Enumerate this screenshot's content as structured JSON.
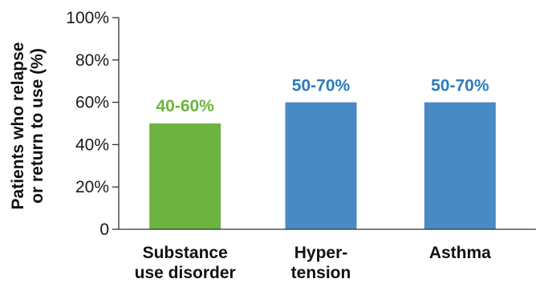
{
  "chart_data": {
    "type": "bar",
    "categories": [
      [
        "Substance",
        "use disorder"
      ],
      [
        "Hyper-",
        "tension"
      ],
      [
        "Asthma"
      ]
    ],
    "values": [
      50,
      60,
      60
    ],
    "data_labels": [
      "40-60%",
      "50-70%",
      "50-70%"
    ],
    "bar_colors": [
      "#6db33f",
      "#4a8ac4"
    ],
    "data_label_colors": [
      "#6db33f",
      "#2e7bbf"
    ],
    "ylabel_lines": [
      "Patients who relapse",
      "or return to use (%)"
    ],
    "yticks": [
      {
        "value": 0,
        "label": "0"
      },
      {
        "value": 20,
        "label": "20%"
      },
      {
        "value": 40,
        "label": "40%"
      },
      {
        "value": 60,
        "label": "60%"
      },
      {
        "value": 80,
        "label": "80%"
      },
      {
        "value": 100,
        "label": "100%"
      }
    ],
    "ylim": [
      0,
      100
    ],
    "grid": false,
    "legend": "none"
  }
}
